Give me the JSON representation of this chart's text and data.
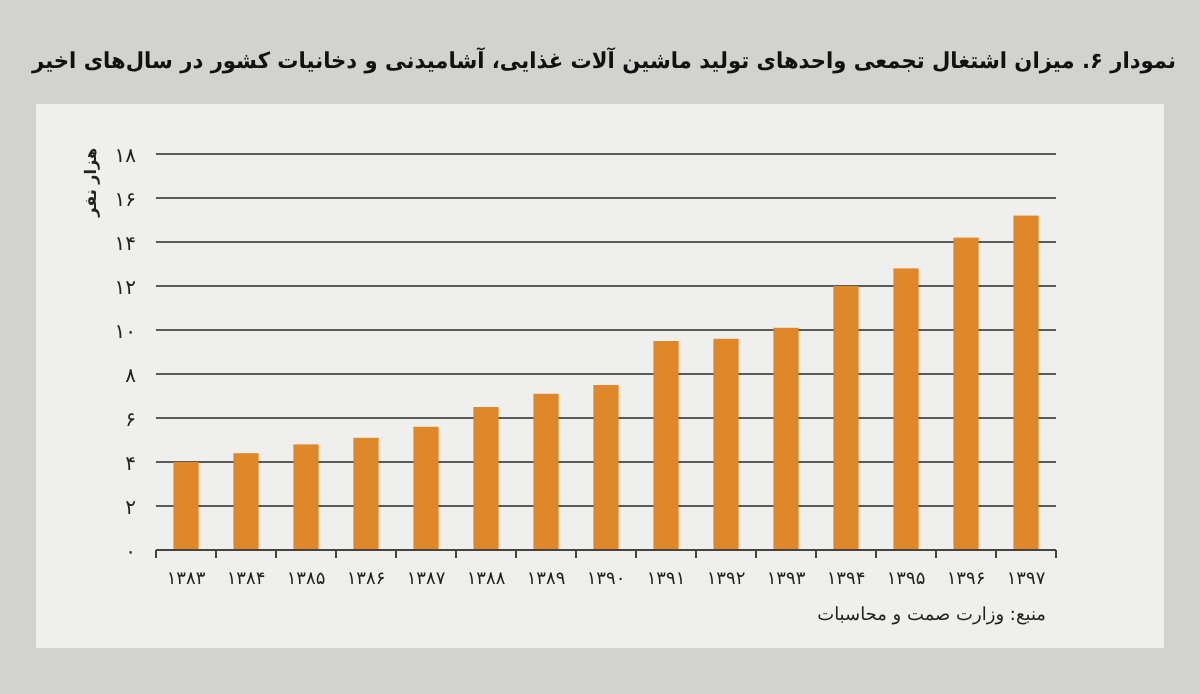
{
  "chart_data": {
    "type": "bar",
    "title": "نمودار ۶. میزان اشتغال تجمعی واحدهای تولید ماشین آلات غذایی، آشامیدنی و دخانیات کشور در سال‌های اخیر",
    "ylabel": "هزار نفر",
    "annotations": [
      "منبع: وزارت صمت و محاسبات"
    ],
    "categories": [
      "۱۳۸۳",
      "۱۳۸۴",
      "۱۳۸۵",
      "۱۳۸۶",
      "۱۳۸۷",
      "۱۳۸۸",
      "۱۳۸۹",
      "۱۳۹۰",
      "۱۳۹۱",
      "۱۳۹۲",
      "۱۳۹۳",
      "۱۳۹۴",
      "۱۳۹۵",
      "۱۳۹۶",
      "۱۳۹۷"
    ],
    "values": [
      4.0,
      4.4,
      4.8,
      5.1,
      5.6,
      6.5,
      7.1,
      7.5,
      9.5,
      9.6,
      10.1,
      12.0,
      12.8,
      14.2,
      15.2
    ],
    "color": "#e0872a",
    "ylim": [
      0,
      18
    ],
    "yticks": [
      {
        "value": 0,
        "label": "۰"
      },
      {
        "value": 2,
        "label": "۲"
      },
      {
        "value": 4,
        "label": "۴"
      },
      {
        "value": 6,
        "label": "۶"
      },
      {
        "value": 8,
        "label": "۸"
      },
      {
        "value": 10,
        "label": "۱۰"
      },
      {
        "value": 12,
        "label": "۱۲"
      },
      {
        "value": 14,
        "label": "۱۴"
      },
      {
        "value": 16,
        "label": "۱۶"
      },
      {
        "value": 18,
        "label": "۱۸"
      }
    ],
    "grid": "y"
  }
}
